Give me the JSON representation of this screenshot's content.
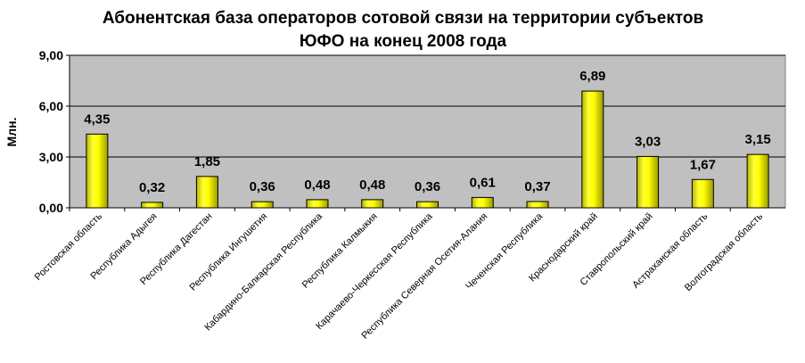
{
  "chart_data": {
    "type": "bar",
    "title_lines": [
      "Абонентская база операторов сотовой связи на территории субъектов",
      "ЮФО на конец 2008 года"
    ],
    "ylabel": "Млн.",
    "xlabel": "",
    "ylim": [
      0,
      9
    ],
    "yticks": [
      0,
      3,
      6,
      9
    ],
    "ytick_labels": [
      "0,00",
      "3,00",
      "6,00",
      "9,00"
    ],
    "grid": true,
    "legend": "none",
    "categories": [
      "Ростовская область",
      "Республика Адыгея",
      "Республика Дагестан",
      "Республика Ингушетия",
      "Кабардино-Балкарская Республика",
      "Республика Калмыкия",
      "Карачаево-Черкесская Республика",
      "Республика Северная Осетия-Алания",
      "Чеченская Республика",
      "Краснодарский край",
      "Ставропольский край",
      "Астраханская область",
      "Волгоградская область"
    ],
    "values": [
      4.35,
      0.32,
      1.85,
      0.36,
      0.48,
      0.48,
      0.36,
      0.61,
      0.37,
      6.89,
      3.03,
      1.67,
      3.15
    ],
    "value_labels": [
      "4,35",
      "0,32",
      "1,85",
      "0,36",
      "0,48",
      "0,48",
      "0,36",
      "0,61",
      "0,37",
      "6,89",
      "3,03",
      "1,67",
      "3,15"
    ],
    "colors": {
      "plot_background": "#c0c0c0",
      "bar_fill": "#ffff00",
      "bar_shade": "#a3a300",
      "gridline": "#000000"
    }
  }
}
